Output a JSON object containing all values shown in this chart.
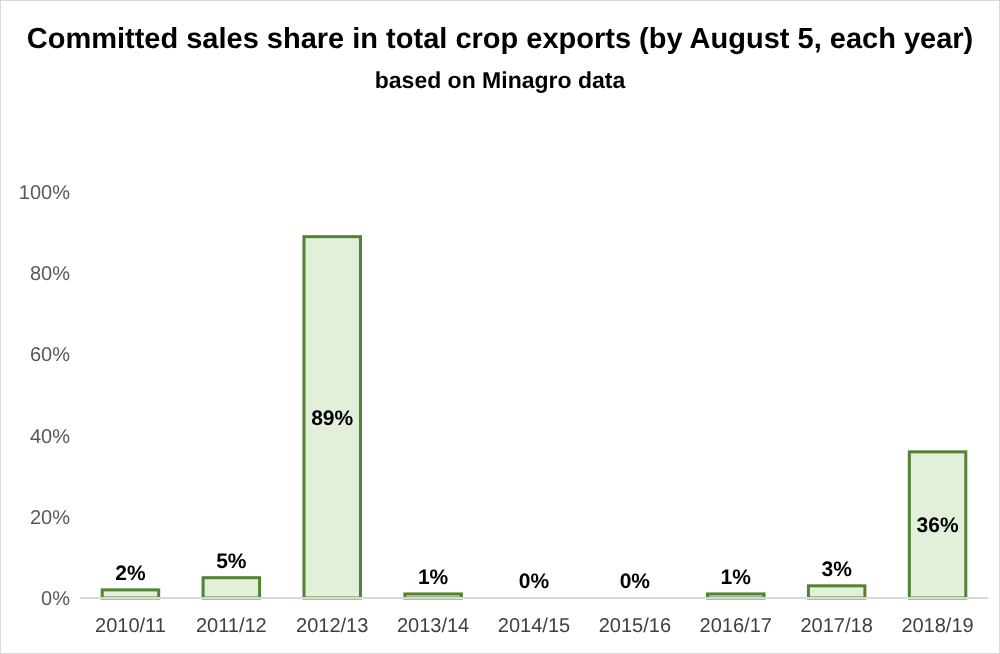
{
  "chart_data": {
    "type": "bar",
    "title": "Committed sales share in total crop exports (by August 5, each year)",
    "subtitle": "based on Minagro data",
    "categories": [
      "2010/11",
      "2011/12",
      "2012/13",
      "2013/14",
      "2014/15",
      "2015/16",
      "2016/17",
      "2017/18",
      "2018/19"
    ],
    "values": [
      2,
      5,
      89,
      1,
      0,
      0,
      1,
      3,
      36
    ],
    "value_labels": [
      "2%",
      "5%",
      "89%",
      "1%",
      "0%",
      "0%",
      "1%",
      "3%",
      "36%"
    ],
    "color": "#e2efd9",
    "ylim": [
      0,
      100
    ],
    "yticks": [
      {
        "value": 0,
        "label": "0%"
      },
      {
        "value": 20,
        "label": "20%"
      },
      {
        "value": 40,
        "label": "40%"
      },
      {
        "value": 60,
        "label": "60%"
      },
      {
        "value": 80,
        "label": "80%"
      },
      {
        "value": 100,
        "label": "100%"
      }
    ],
    "grid": false
  }
}
